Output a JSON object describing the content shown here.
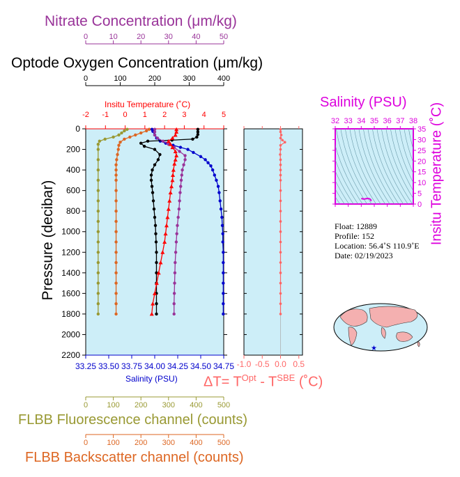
{
  "colors": {
    "nitrate": "#993399",
    "oxygen": "#000000",
    "temperature": "#ff0000",
    "salinity": "#0000cc",
    "fluorescence": "#999933",
    "backscatter": "#dd6622",
    "delta": "#ff6666",
    "ts": "#dd00dd",
    "panel_bg": "#cdeef8",
    "contour": "#6a9aaa",
    "land": "#f4b0b0"
  },
  "labels": {
    "nitrate_title": "Nitrate Concentration (μm/kg)",
    "oxygen_title": "Optode Oxygen Concentration (μm/kg)",
    "temperature_title": "Insitu Temperature (˚C)",
    "pressure_label": "Pressure (decibar)",
    "salinity_axis_label": "Salinity (PSU)",
    "delta_label_main": "ΔT= T",
    "delta_label_sup1": "Opt",
    "delta_label_mid": " - T",
    "delta_label_sup2": "SBE",
    "delta_label_end": " (˚C)",
    "fluorescence_title": "FLBB Fluorescence channel (counts)",
    "backscatter_title": "FLBB Backscatter channel (counts)",
    "ts_salinity_title": "Salinity (PSU)",
    "ts_temperature_title": "Insitu Temperature (˚C)"
  },
  "info": {
    "float": "Float:  12889",
    "profile": "Profile:  152",
    "location": "Location:  56.4˚S  110.9˚E",
    "date": "Date:  02/19/2023"
  },
  "chart_data": [
    {
      "type": "line",
      "id": "profile",
      "y_name": "Pressure (decibar)",
      "ylim": [
        2200,
        0
      ],
      "y_ticks": [
        0,
        200,
        400,
        600,
        800,
        1000,
        1200,
        1400,
        1600,
        1800,
        2000,
        2200
      ],
      "axes": {
        "nitrate": {
          "lim": [
            0,
            50
          ],
          "ticks": [
            0,
            10,
            20,
            30,
            40,
            50
          ],
          "position": "top-1"
        },
        "oxygen": {
          "lim": [
            0,
            400
          ],
          "ticks": [
            0,
            100,
            200,
            300,
            400
          ],
          "position": "top-2"
        },
        "temperature": {
          "lim": [
            -2,
            5
          ],
          "ticks": [
            -2,
            -1,
            0,
            1,
            2,
            3,
            4,
            5
          ],
          "position": "top-3"
        },
        "salinity": {
          "lim": [
            33.25,
            34.75
          ],
          "ticks": [
            "33.25",
            "33.50",
            "33.75",
            "34.00",
            "34.25",
            "34.50",
            "34.75"
          ],
          "position": "bottom-1"
        },
        "fluorescence": {
          "lim": [
            0,
            500
          ],
          "ticks": [
            0,
            100,
            200,
            300,
            400,
            500
          ],
          "position": "bottom-2"
        },
        "backscatter": {
          "lim": [
            0,
            500
          ],
          "ticks": [
            0,
            100,
            200,
            300,
            400,
            500
          ],
          "position": "bottom-3"
        }
      },
      "series": [
        {
          "key": "salinity",
          "axis": "salinity",
          "marker": "dot",
          "points": [
            [
              33.97,
              5
            ],
            [
              33.98,
              25
            ],
            [
              34.0,
              60
            ],
            [
              34.02,
              90
            ],
            [
              34.06,
              120
            ],
            [
              34.12,
              140
            ],
            [
              34.2,
              160
            ],
            [
              34.28,
              180
            ],
            [
              34.36,
              200
            ],
            [
              34.42,
              230
            ],
            [
              34.5,
              270
            ],
            [
              34.55,
              300
            ],
            [
              34.58,
              330
            ],
            [
              34.61,
              360
            ],
            [
              34.63,
              400
            ],
            [
              34.65,
              450
            ],
            [
              34.67,
              500
            ],
            [
              34.69,
              560
            ],
            [
              34.7,
              620
            ],
            [
              34.71,
              700
            ],
            [
              34.72,
              780
            ],
            [
              34.73,
              860
            ],
            [
              34.735,
              940
            ],
            [
              34.74,
              1020
            ],
            [
              34.74,
              1100
            ],
            [
              34.745,
              1200
            ],
            [
              34.745,
              1300
            ],
            [
              34.745,
              1400
            ],
            [
              34.745,
              1500
            ],
            [
              34.745,
              1600
            ],
            [
              34.745,
              1700
            ],
            [
              34.745,
              1800
            ]
          ]
        },
        {
          "key": "temperature",
          "axis": "temperature",
          "marker": "triangle",
          "points": [
            [
              2.6,
              5
            ],
            [
              2.6,
              30
            ],
            [
              2.55,
              60
            ],
            [
              2.4,
              90
            ],
            [
              2.2,
              120
            ],
            [
              2.3,
              150
            ],
            [
              2.4,
              180
            ],
            [
              2.55,
              220
            ],
            [
              2.6,
              260
            ],
            [
              2.55,
              300
            ],
            [
              2.5,
              340
            ],
            [
              2.45,
              400
            ],
            [
              2.42,
              450
            ],
            [
              2.4,
              500
            ],
            [
              2.35,
              560
            ],
            [
              2.3,
              620
            ],
            [
              2.25,
              700
            ],
            [
              2.2,
              780
            ],
            [
              2.15,
              860
            ],
            [
              2.1,
              940
            ],
            [
              2.05,
              1020
            ],
            [
              2.0,
              1100
            ],
            [
              1.9,
              1200
            ],
            [
              1.8,
              1300
            ],
            [
              1.7,
              1400
            ],
            [
              1.6,
              1500
            ],
            [
              1.5,
              1600
            ],
            [
              1.4,
              1700
            ],
            [
              1.35,
              1800
            ]
          ]
        },
        {
          "key": "oxygen",
          "axis": "oxygen",
          "marker": "dot",
          "points": [
            [
              325,
              5
            ],
            [
              325,
              30
            ],
            [
              325,
              55
            ],
            [
              322,
              80
            ],
            [
              310,
              100
            ],
            [
              250,
              110
            ],
            [
              180,
              120
            ],
            [
              160,
              140
            ],
            [
              170,
              170
            ],
            [
              200,
              200
            ],
            [
              215,
              250
            ],
            [
              210,
              300
            ],
            [
              200,
              350
            ],
            [
              193,
              400
            ],
            [
              190,
              450
            ],
            [
              190,
              500
            ],
            [
              192,
              560
            ],
            [
              194,
              620
            ],
            [
              196,
              700
            ],
            [
              198,
              780
            ],
            [
              200,
              860
            ],
            [
              202,
              940
            ],
            [
              203,
              1020
            ],
            [
              204,
              1100
            ],
            [
              205,
              1200
            ],
            [
              205,
              1300
            ],
            [
              205,
              1400
            ],
            [
              205,
              1500
            ],
            [
              205,
              1600
            ],
            [
              205,
              1700
            ],
            [
              205,
              1800
            ]
          ]
        },
        {
          "key": "nitrate",
          "axis": "nitrate",
          "marker": "dot",
          "points": [
            [
              25,
              5
            ],
            [
              25,
              30
            ],
            [
              25,
              60
            ],
            [
              26,
              90
            ],
            [
              28,
              120
            ],
            [
              30,
              150
            ],
            [
              32,
              180
            ],
            [
              34,
              220
            ],
            [
              36,
              260
            ],
            [
              36,
              300
            ],
            [
              35.5,
              350
            ],
            [
              35,
              400
            ],
            [
              34.8,
              450
            ],
            [
              34.6,
              500
            ],
            [
              34.4,
              560
            ],
            [
              34.2,
              620
            ],
            [
              34,
              700
            ],
            [
              33.8,
              780
            ],
            [
              33.5,
              860
            ],
            [
              33.2,
              940
            ],
            [
              33,
              1020
            ],
            [
              32.8,
              1100
            ],
            [
              32.6,
              1200
            ],
            [
              32.4,
              1300
            ],
            [
              32.3,
              1400
            ],
            [
              32.2,
              1500
            ],
            [
              32.1,
              1600
            ],
            [
              32,
              1700
            ],
            [
              32,
              1800
            ]
          ]
        },
        {
          "key": "fluorescence",
          "axis": "fluorescence",
          "marker": "dot",
          "points": [
            [
              150,
              5
            ],
            [
              140,
              20
            ],
            [
              130,
              40
            ],
            [
              120,
              60
            ],
            [
              100,
              80
            ],
            [
              70,
              100
            ],
            [
              50,
              120
            ],
            [
              45,
              150
            ],
            [
              45,
              200
            ],
            [
              45,
              300
            ],
            [
              45,
              400
            ],
            [
              45,
              500
            ],
            [
              45,
              600
            ],
            [
              45,
              700
            ],
            [
              45,
              800
            ],
            [
              45,
              900
            ],
            [
              45,
              1000
            ],
            [
              45,
              1100
            ],
            [
              45,
              1200
            ],
            [
              45,
              1300
            ],
            [
              45,
              1400
            ],
            [
              45,
              1500
            ],
            [
              45,
              1600
            ],
            [
              45,
              1700
            ],
            [
              45,
              1800
            ]
          ]
        },
        {
          "key": "backscatter",
          "axis": "backscatter",
          "marker": "dot",
          "points": [
            [
              230,
              5
            ],
            [
              220,
              20
            ],
            [
              200,
              40
            ],
            [
              180,
              60
            ],
            [
              160,
              80
            ],
            [
              140,
              100
            ],
            [
              125,
              130
            ],
            [
              120,
              160
            ],
            [
              118,
              200
            ],
            [
              115,
              250
            ],
            [
              112,
              300
            ],
            [
              110,
              350
            ],
            [
              110,
              400
            ],
            [
              110,
              450
            ],
            [
              110,
              500
            ],
            [
              110,
              600
            ],
            [
              110,
              700
            ],
            [
              110,
              800
            ],
            [
              110,
              900
            ],
            [
              110,
              1000
            ],
            [
              110,
              1100
            ],
            [
              110,
              1200
            ],
            [
              110,
              1300
            ],
            [
              110,
              1400
            ],
            [
              110,
              1500
            ],
            [
              110,
              1600
            ],
            [
              110,
              1700
            ],
            [
              110,
              1800
            ]
          ]
        }
      ]
    },
    {
      "type": "line",
      "id": "delta",
      "xlim": [
        -1.0,
        0.6
      ],
      "x_ticks": [
        "-1.0",
        "-0.5",
        "0.0",
        "0.5"
      ],
      "ylim": [
        2200,
        0
      ],
      "series": [
        {
          "key": "delta",
          "marker": "dot",
          "points": [
            [
              0.0,
              5
            ],
            [
              0.0,
              30
            ],
            [
              0.02,
              60
            ],
            [
              0.0,
              90
            ],
            [
              0.05,
              110
            ],
            [
              0.12,
              130
            ],
            [
              0.0,
              160
            ],
            [
              0.0,
              200
            ],
            [
              -0.01,
              250
            ],
            [
              0.0,
              300
            ],
            [
              0.0,
              350
            ],
            [
              0.0,
              400
            ],
            [
              0.0,
              450
            ],
            [
              0.0,
              500
            ],
            [
              0.0,
              600
            ],
            [
              0.0,
              700
            ],
            [
              0.0,
              800
            ],
            [
              0.0,
              900
            ],
            [
              0.0,
              1000
            ],
            [
              0.0,
              1100
            ],
            [
              0.0,
              1200
            ],
            [
              0.0,
              1300
            ],
            [
              0.0,
              1400
            ],
            [
              0.0,
              1500
            ],
            [
              0.0,
              1600
            ],
            [
              0.0,
              1700
            ],
            [
              0.0,
              1800
            ]
          ]
        }
      ]
    },
    {
      "type": "scatter",
      "id": "ts",
      "xlim": [
        32,
        38
      ],
      "x_ticks": [
        32,
        33,
        34,
        35,
        36,
        37,
        38
      ],
      "ylim": [
        0,
        35
      ],
      "y_ticks": [
        0,
        5,
        10,
        15,
        20,
        25,
        30,
        35
      ],
      "series": [
        {
          "key": "ts",
          "points": [
            [
              34.0,
              2.6
            ],
            [
              34.05,
              2.5
            ],
            [
              34.2,
              2.3
            ],
            [
              34.3,
              2.4
            ],
            [
              34.45,
              2.6
            ],
            [
              34.55,
              2.55
            ],
            [
              34.62,
              2.45
            ],
            [
              34.66,
              2.35
            ],
            [
              34.7,
              2.2
            ],
            [
              34.72,
              2.05
            ],
            [
              34.74,
              1.8
            ],
            [
              34.745,
              1.5
            ],
            [
              34.745,
              1.35
            ]
          ]
        }
      ]
    }
  ]
}
